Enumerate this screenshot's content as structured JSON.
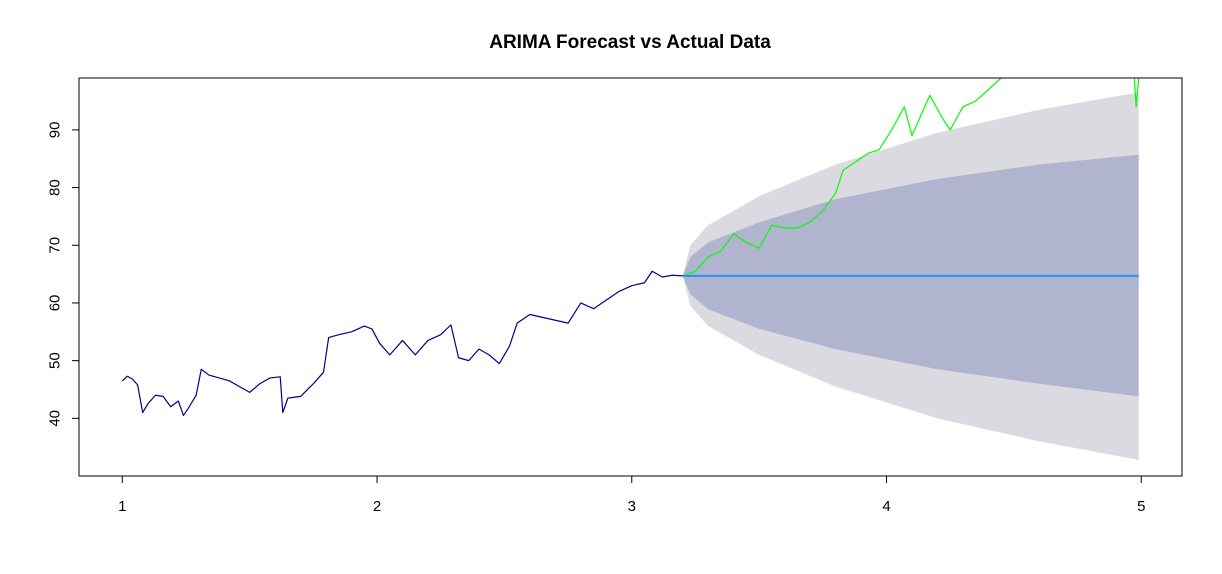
{
  "chart_data": {
    "type": "line",
    "title": "ARIMA Forecast vs Actual Data",
    "xlabel": "",
    "ylabel": "",
    "xlim": [
      0.83,
      5.16
    ],
    "ylim": [
      30,
      99
    ],
    "x_ticks": [
      1,
      2,
      3,
      4,
      5
    ],
    "x_tick_labels": [
      "1",
      "2",
      "3",
      "4",
      "5"
    ],
    "y_ticks": [
      40,
      50,
      60,
      70,
      80,
      90
    ],
    "y_tick_labels": [
      "40",
      "50",
      "60",
      "70",
      "80",
      "90"
    ],
    "grid": false,
    "legend": "none",
    "colors": {
      "history": "#00008B",
      "actual": "#00FF00",
      "forecast": "#1E90FF",
      "band80": "#B0B4CF",
      "band95": "#DADAE0"
    },
    "forecast": {
      "start_x": 3.2,
      "end_x": 4.99,
      "point": 64.7,
      "upper80": [
        [
          3.2,
          64.7
        ],
        [
          3.23,
          68
        ],
        [
          3.3,
          70.5
        ],
        [
          3.5,
          74
        ],
        [
          3.8,
          78
        ],
        [
          4.2,
          81.5
        ],
        [
          4.6,
          84
        ],
        [
          4.99,
          85.7
        ]
      ],
      "lower80": [
        [
          3.2,
          64.7
        ],
        [
          3.23,
          61.5
        ],
        [
          3.3,
          58.9
        ],
        [
          3.5,
          55.5
        ],
        [
          3.8,
          52
        ],
        [
          4.2,
          48.5
        ],
        [
          4.6,
          46
        ],
        [
          4.99,
          43.8
        ]
      ],
      "upper95": [
        [
          3.2,
          64.7
        ],
        [
          3.23,
          70
        ],
        [
          3.3,
          73.5
        ],
        [
          3.5,
          78.5
        ],
        [
          3.8,
          84
        ],
        [
          4.2,
          89.5
        ],
        [
          4.6,
          93.5
        ],
        [
          4.99,
          96.5
        ]
      ],
      "lower95": [
        [
          3.2,
          64.7
        ],
        [
          3.23,
          59.5
        ],
        [
          3.3,
          56
        ],
        [
          3.5,
          51
        ],
        [
          3.8,
          45.5
        ],
        [
          4.2,
          40
        ],
        [
          4.6,
          36
        ],
        [
          4.99,
          32.8
        ]
      ]
    },
    "series": [
      {
        "role": "history",
        "points": [
          [
            1.0,
            46.5
          ],
          [
            1.02,
            47.3
          ],
          [
            1.04,
            46.8
          ],
          [
            1.06,
            45.8
          ],
          [
            1.08,
            41.0
          ],
          [
            1.1,
            42.5
          ],
          [
            1.13,
            44.0
          ],
          [
            1.16,
            43.8
          ],
          [
            1.19,
            42.0
          ],
          [
            1.22,
            43.0
          ],
          [
            1.24,
            40.5
          ],
          [
            1.26,
            41.8
          ],
          [
            1.29,
            44.0
          ],
          [
            1.31,
            48.5
          ],
          [
            1.34,
            47.5
          ],
          [
            1.38,
            47.0
          ],
          [
            1.42,
            46.5
          ],
          [
            1.46,
            45.5
          ],
          [
            1.5,
            44.5
          ],
          [
            1.54,
            46.0
          ],
          [
            1.58,
            47.0
          ],
          [
            1.62,
            47.2
          ],
          [
            1.63,
            41.0
          ],
          [
            1.65,
            43.5
          ],
          [
            1.7,
            43.8
          ],
          [
            1.75,
            46.0
          ],
          [
            1.79,
            48.0
          ],
          [
            1.81,
            54.0
          ],
          [
            1.85,
            54.5
          ],
          [
            1.9,
            55.0
          ],
          [
            1.95,
            56.0
          ],
          [
            1.98,
            55.5
          ],
          [
            2.01,
            53.0
          ],
          [
            2.05,
            51.0
          ],
          [
            2.1,
            53.5
          ],
          [
            2.15,
            51.0
          ],
          [
            2.2,
            53.5
          ],
          [
            2.25,
            54.5
          ],
          [
            2.29,
            56.2
          ],
          [
            2.32,
            50.5
          ],
          [
            2.36,
            50.0
          ],
          [
            2.4,
            52.0
          ],
          [
            2.44,
            51.0
          ],
          [
            2.48,
            49.5
          ],
          [
            2.52,
            52.5
          ],
          [
            2.55,
            56.5
          ],
          [
            2.6,
            58.0
          ],
          [
            2.65,
            57.5
          ],
          [
            2.7,
            57.0
          ],
          [
            2.75,
            56.5
          ],
          [
            2.8,
            60.0
          ],
          [
            2.85,
            59.0
          ],
          [
            2.9,
            60.5
          ],
          [
            2.95,
            62.0
          ],
          [
            3.0,
            63.0
          ],
          [
            3.05,
            63.5
          ],
          [
            3.08,
            65.5
          ],
          [
            3.12,
            64.5
          ],
          [
            3.16,
            64.8
          ],
          [
            3.2,
            64.7
          ]
        ]
      },
      {
        "role": "actual",
        "points": [
          [
            3.2,
            64.7
          ],
          [
            3.25,
            65.5
          ],
          [
            3.3,
            68.0
          ],
          [
            3.35,
            69.0
          ],
          [
            3.4,
            72.0
          ],
          [
            3.45,
            70.5
          ],
          [
            3.5,
            69.5
          ],
          [
            3.55,
            73.5
          ],
          [
            3.6,
            73.0
          ],
          [
            3.65,
            73.0
          ],
          [
            3.7,
            74.0
          ],
          [
            3.75,
            76.0
          ],
          [
            3.8,
            79.0
          ],
          [
            3.83,
            83.0
          ],
          [
            3.88,
            84.5
          ],
          [
            3.93,
            86.0
          ],
          [
            3.97,
            86.5
          ],
          [
            4.02,
            90.0
          ],
          [
            4.07,
            94.0
          ],
          [
            4.1,
            89.0
          ],
          [
            4.13,
            92.0
          ],
          [
            4.17,
            96.0
          ],
          [
            4.22,
            92.0
          ],
          [
            4.25,
            90.0
          ],
          [
            4.3,
            94.0
          ],
          [
            4.35,
            95.0
          ],
          [
            4.4,
            97.0
          ],
          [
            4.45,
            99.0
          ],
          [
            4.5,
            99.5
          ],
          [
            4.6,
            100.5
          ],
          [
            4.7,
            101.5
          ],
          [
            4.8,
            102.0
          ],
          [
            4.9,
            102.5
          ],
          [
            4.97,
            101.0
          ],
          [
            4.98,
            94.0
          ],
          [
            4.99,
            99.0
          ]
        ]
      },
      {
        "role": "forecast",
        "points": [
          [
            3.2,
            64.7
          ],
          [
            4.99,
            64.7
          ]
        ]
      }
    ]
  }
}
